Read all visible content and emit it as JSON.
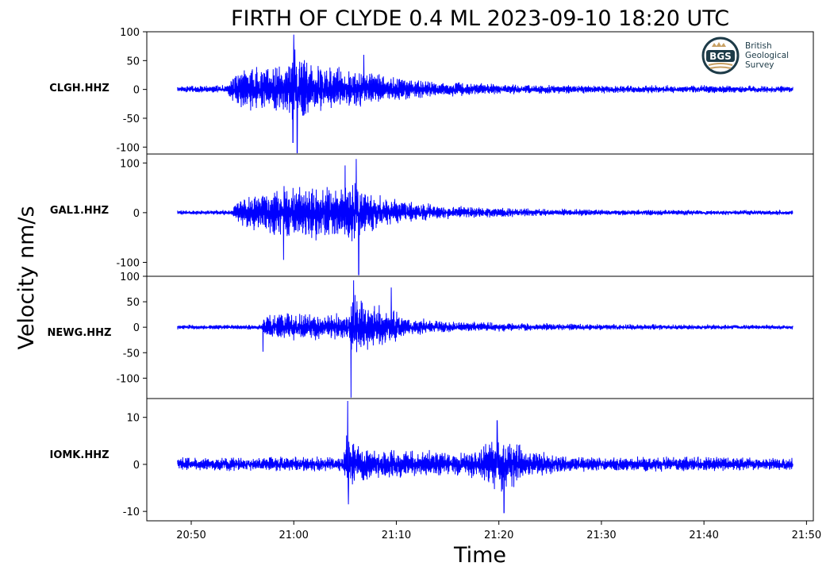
{
  "chart_data": {
    "type": "line",
    "title": "FIRTH OF CLYDE 0.4 ML   2023-09-10 18:20 UTC",
    "xlabel": "Time",
    "ylabel": "Velocity nm/s",
    "xticks": [
      "20:50",
      "21:00",
      "21:10",
      "21:20",
      "21:30",
      "21:40",
      "21:50"
    ],
    "xlim": [
      "20:45:40",
      "21:50:40"
    ],
    "grid": false,
    "line_color": "#0000ff",
    "panels": [
      {
        "station": "CLGH.HHZ",
        "yticks": [
          "100",
          "50",
          "0",
          "-50",
          "-100"
        ],
        "ylim": [
          -112,
          100
        ],
        "time_range": [
          "20:48:40",
          "21:48:40"
        ],
        "envelope": [
          [
            "20:48:40",
            7
          ],
          [
            "20:53:30",
            8
          ],
          [
            "20:54:00",
            28
          ],
          [
            "20:55:00",
            45
          ],
          [
            "20:57:00",
            42
          ],
          [
            "20:59:30",
            55
          ],
          [
            "21:00:00",
            90
          ],
          [
            "21:01:00",
            65
          ],
          [
            "21:02:30",
            55
          ],
          [
            "21:04:00",
            45
          ],
          [
            "21:06:00",
            38
          ],
          [
            "21:09:00",
            28
          ],
          [
            "21:12:00",
            20
          ],
          [
            "21:16:00",
            14
          ],
          [
            "21:22:00",
            10
          ],
          [
            "21:30:00",
            8
          ],
          [
            "21:40:00",
            8
          ],
          [
            "21:48:40",
            7
          ]
        ],
        "peaks": [
          [
            "21:00:00",
            95
          ],
          [
            "21:00:20",
            -110
          ],
          [
            "20:59:55",
            -92
          ],
          [
            "21:06:50",
            60
          ]
        ]
      },
      {
        "station": "GAL1.HHZ",
        "yticks": [
          "100",
          "0",
          "-100"
        ],
        "ylim": [
          -128,
          118
        ],
        "time_range": [
          "20:48:40",
          "21:48:40"
        ],
        "envelope": [
          [
            "20:48:40",
            5
          ],
          [
            "20:53:50",
            6
          ],
          [
            "20:54:30",
            25
          ],
          [
            "20:56:00",
            45
          ],
          [
            "20:58:00",
            55
          ],
          [
            "21:00:00",
            60
          ],
          [
            "21:02:00",
            65
          ],
          [
            "21:04:00",
            62
          ],
          [
            "21:06:00",
            75
          ],
          [
            "21:07:00",
            55
          ],
          [
            "21:09:00",
            35
          ],
          [
            "21:12:00",
            22
          ],
          [
            "21:16:00",
            14
          ],
          [
            "21:22:00",
            10
          ],
          [
            "21:30:00",
            7
          ],
          [
            "21:40:00",
            6
          ],
          [
            "21:48:40",
            6
          ]
        ],
        "peaks": [
          [
            "21:06:05",
            108
          ],
          [
            "21:06:20",
            -125
          ],
          [
            "21:05:00",
            95
          ],
          [
            "20:59:00",
            -95
          ]
        ]
      },
      {
        "station": "NEWG.HHZ",
        "yticks": [
          "100",
          "50",
          "0",
          "-50",
          "-100"
        ],
        "ylim": [
          -140,
          100
        ],
        "time_range": [
          "20:48:40",
          "21:48:40"
        ],
        "envelope": [
          [
            "20:48:40",
            5
          ],
          [
            "20:56:50",
            6
          ],
          [
            "20:57:10",
            28
          ],
          [
            "20:58:30",
            30
          ],
          [
            "21:01:00",
            32
          ],
          [
            "21:04:00",
            30
          ],
          [
            "21:05:20",
            30
          ],
          [
            "21:05:40",
            70
          ],
          [
            "21:07:00",
            55
          ],
          [
            "21:09:00",
            45
          ],
          [
            "21:11:00",
            20
          ],
          [
            "21:15:00",
            14
          ],
          [
            "21:20:00",
            10
          ],
          [
            "21:30:00",
            7
          ],
          [
            "21:40:00",
            6
          ],
          [
            "21:48:40",
            5
          ]
        ],
        "peaks": [
          [
            "21:05:50",
            92
          ],
          [
            "21:05:35",
            -138
          ],
          [
            "20:57:00",
            -48
          ],
          [
            "21:09:30",
            78
          ]
        ]
      },
      {
        "station": "IOMK.HHZ",
        "yticks": [
          "10",
          "0",
          "-10"
        ],
        "ylim": [
          -12,
          14
        ],
        "time_range": [
          "20:48:40",
          "21:48:40"
        ],
        "envelope": [
          [
            "20:48:40",
            1.6
          ],
          [
            "21:04:50",
            1.8
          ],
          [
            "21:05:10",
            8
          ],
          [
            "21:06:00",
            5
          ],
          [
            "21:08:00",
            3.5
          ],
          [
            "21:12:00",
            3.2
          ],
          [
            "21:17:00",
            3.0
          ],
          [
            "21:18:30",
            4.5
          ],
          [
            "21:20:00",
            7
          ],
          [
            "21:21:00",
            6
          ],
          [
            "21:23:00",
            3.5
          ],
          [
            "21:26:00",
            2.2
          ],
          [
            "21:30:00",
            1.8
          ],
          [
            "21:40:00",
            1.8
          ],
          [
            "21:48:40",
            1.6
          ]
        ],
        "peaks": [
          [
            "21:05:15",
            13.5
          ],
          [
            "21:05:20",
            -8.5
          ],
          [
            "21:20:30",
            -10.3
          ],
          [
            "21:19:50",
            9.3
          ]
        ]
      }
    ]
  },
  "logo": {
    "emblem_text": "BGS",
    "name_lines": [
      "British",
      "Geological",
      "Survey"
    ]
  }
}
